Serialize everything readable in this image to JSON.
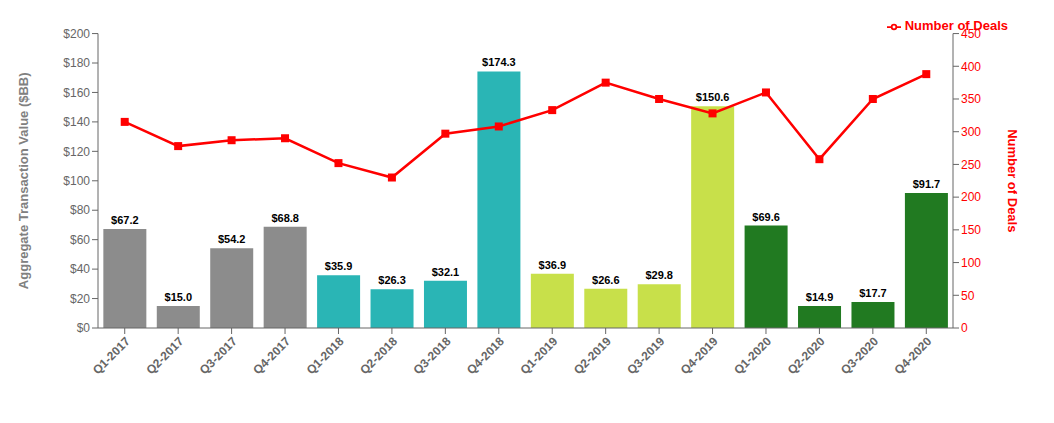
{
  "chart_data": {
    "type": "bar",
    "categories": [
      "Q1-2017",
      "Q2-2017",
      "Q3-2017",
      "Q4-2017",
      "Q1-2018",
      "Q2-2018",
      "Q3-2018",
      "Q4-2018",
      "Q1-2019",
      "Q2-2019",
      "Q3-2019",
      "Q4-2019",
      "Q1-2020",
      "Q2-2020",
      "Q3-2020",
      "Q4-2020"
    ],
    "series": [
      {
        "type": "bar",
        "colors": [
          "#8c8c8c",
          "#8c8c8c",
          "#8c8c8c",
          "#8c8c8c",
          "#2ab5b5",
          "#2ab5b5",
          "#2ab5b5",
          "#2ab5b5",
          "#c8e04a",
          "#c8e04a",
          "#c8e04a",
          "#c8e04a",
          "#217a21",
          "#217a21",
          "#217a21",
          "#217a21"
        ],
        "values": [
          67.2,
          15.0,
          54.2,
          68.8,
          35.9,
          26.3,
          32.1,
          174.3,
          36.9,
          26.6,
          29.8,
          150.6,
          69.6,
          14.9,
          17.7,
          91.7
        ],
        "value_labels": [
          "$67.2",
          "$15.0",
          "$54.2",
          "$68.8",
          "$35.9",
          "$26.3",
          "$32.1",
          "$174.3",
          "$36.9",
          "$26.6",
          "$29.8",
          "$150.6",
          "$69.6",
          "$14.9",
          "$17.7",
          "$91.7"
        ],
        "data_labels": true
      },
      {
        "type": "line",
        "name": "Number of Deals",
        "color": "#ff0000",
        "marker": "square",
        "axis": "y2",
        "values": [
          315,
          278,
          287,
          290,
          252,
          230,
          297,
          308,
          333,
          375,
          350,
          328,
          360,
          258,
          350,
          388
        ]
      }
    ],
    "ylabel": "Aggregate Transaction Value ($BB)",
    "y2label": "Number of Deals",
    "ylim": [
      0,
      200
    ],
    "yticks": [
      {
        "value": 0,
        "label": "$0"
      },
      {
        "value": 20,
        "label": "$20"
      },
      {
        "value": 40,
        "label": "$40"
      },
      {
        "value": 60,
        "label": "$60"
      },
      {
        "value": 80,
        "label": "$80"
      },
      {
        "value": 100,
        "label": "$100"
      },
      {
        "value": 120,
        "label": "$120"
      },
      {
        "value": 140,
        "label": "$140"
      },
      {
        "value": 160,
        "label": "$160"
      },
      {
        "value": 180,
        "label": "$180"
      },
      {
        "value": 200,
        "label": "$200"
      }
    ],
    "y2lim": [
      0,
      450
    ],
    "y2ticks": [
      0,
      50,
      100,
      150,
      200,
      250,
      300,
      350,
      400,
      450
    ],
    "legend": "upper right",
    "grid": false
  }
}
